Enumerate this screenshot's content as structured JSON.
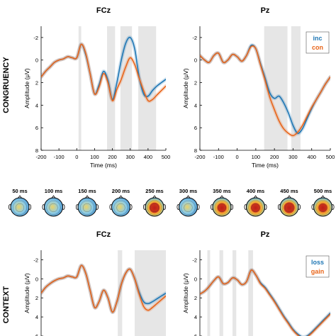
{
  "rows": [
    {
      "row_label": "CONGRUENCY",
      "panels": [
        {
          "title": "FCz",
          "xlabel": "Time (ms)",
          "ylabel": "Amplitude (μV)",
          "legend": null,
          "show_xaxis": true,
          "shaded": [
            [
              10,
              25
            ],
            [
              170,
              215
            ],
            [
              245,
              310
            ],
            [
              345,
              445
            ]
          ]
        },
        {
          "title": "Pz",
          "xlabel": "Time (ms)",
          "ylabel": "Amplitude (μV)",
          "legend": [
            "inc",
            "con"
          ],
          "show_xaxis": true,
          "shaded": [
            [
              145,
              270
            ],
            [
              290,
              340
            ]
          ]
        }
      ]
    },
    {
      "row_label": "CONTEXT",
      "panels": [
        {
          "title": "FCz",
          "xlabel": "",
          "ylabel": "Amplitude (μV)",
          "legend": null,
          "show_xaxis": false,
          "shaded": [
            [
              230,
              255
            ],
            [
              325,
              500
            ]
          ]
        },
        {
          "title": "Pz",
          "xlabel": "",
          "ylabel": "Amplitude (μV)",
          "legend": [
            "loss",
            "gain"
          ],
          "show_xaxis": false,
          "shaded": [
            [
              -160,
              -145
            ],
            [
              -95,
              -75
            ],
            [
              -25,
              -5
            ],
            [
              60,
              85
            ]
          ]
        }
      ]
    }
  ],
  "topomaps": {
    "labels": [
      "50 ms",
      "100 ms",
      "150 ms",
      "200 ms",
      "250 ms",
      "300 ms",
      "350 ms",
      "400 ms",
      "450 ms",
      "500 ms"
    ],
    "intensity": [
      0.05,
      0.15,
      0.25,
      0.2,
      0.85,
      0.45,
      0.65,
      0.7,
      0.95,
      0.6
    ]
  },
  "colors": {
    "series_a": "#1f77b4",
    "series_b": "#e8651a",
    "shade": "#e6e6e6"
  },
  "chart_data": [
    {
      "type": "line",
      "title": "FCz",
      "xlabel": "Time (ms)",
      "ylabel": "Amplitude (μV)",
      "xlim": [
        -200,
        500
      ],
      "ylim": [
        -3,
        8
      ],
      "y_inverted": true,
      "xticks": [
        -200,
        -100,
        0,
        100,
        200,
        300,
        400,
        500
      ],
      "yticks": [
        -2,
        0,
        2,
        4,
        6,
        8
      ],
      "x": [
        -200,
        -175,
        -150,
        -125,
        -100,
        -75,
        -50,
        -25,
        0,
        25,
        50,
        75,
        100,
        125,
        150,
        175,
        200,
        225,
        250,
        275,
        300,
        325,
        350,
        375,
        400,
        425,
        450,
        475,
        500
      ],
      "series": [
        {
          "name": "inc",
          "values": [
            1.5,
            1.0,
            0.6,
            0.2,
            0.0,
            -0.1,
            -0.3,
            -0.2,
            -0.2,
            -1.4,
            -0.5,
            1.2,
            3.0,
            2.2,
            1.0,
            1.8,
            3.5,
            2.0,
            0.0,
            -1.5,
            -2.0,
            -1.0,
            1.5,
            3.0,
            3.2,
            2.7,
            2.3,
            2.0,
            1.7
          ]
        },
        {
          "name": "con",
          "values": [
            1.5,
            1.0,
            0.6,
            0.2,
            0.0,
            -0.1,
            -0.3,
            -0.2,
            -0.2,
            -1.4,
            -0.6,
            1.2,
            3.0,
            2.4,
            1.2,
            2.0,
            3.6,
            2.6,
            1.7,
            0.6,
            -0.2,
            0.4,
            1.6,
            2.7,
            3.6,
            3.5,
            3.1,
            2.7,
            2.3
          ]
        }
      ]
    },
    {
      "type": "line",
      "title": "Pz",
      "xlabel": "Time (ms)",
      "ylabel": "Amplitude (μV)",
      "xlim": [
        -200,
        500
      ],
      "ylim": [
        -3,
        8
      ],
      "y_inverted": true,
      "xticks": [
        -200,
        -100,
        0,
        100,
        200,
        300,
        400,
        500
      ],
      "yticks": [
        -2,
        0,
        2,
        4,
        6,
        8
      ],
      "x": [
        -200,
        -175,
        -150,
        -125,
        -100,
        -75,
        -50,
        -25,
        0,
        25,
        50,
        75,
        100,
        125,
        150,
        175,
        200,
        225,
        250,
        275,
        300,
        325,
        350,
        375,
        400,
        425,
        450,
        475,
        500
      ],
      "series": [
        {
          "name": "inc",
          "values": [
            -0.4,
            0.0,
            0.2,
            -0.4,
            -0.6,
            0.2,
            0.0,
            -0.5,
            -0.3,
            0.1,
            -0.4,
            -1.3,
            -1.0,
            0.3,
            1.6,
            2.9,
            3.4,
            3.2,
            3.8,
            4.7,
            5.8,
            6.5,
            6.1,
            5.2,
            4.3,
            3.5,
            2.8,
            2.1,
            1.5
          ]
        },
        {
          "name": "con",
          "values": [
            -0.4,
            0.0,
            0.2,
            -0.4,
            -0.6,
            0.2,
            0.0,
            -0.5,
            -0.3,
            0.1,
            -0.4,
            -1.2,
            -1.0,
            0.4,
            1.8,
            3.3,
            4.4,
            5.4,
            6.1,
            6.5,
            6.7,
            6.4,
            5.8,
            5.0,
            4.2,
            3.5,
            2.8,
            2.1,
            1.5
          ]
        }
      ]
    },
    {
      "type": "line",
      "title": "FCz",
      "xlabel": "",
      "ylabel": "Amplitude (μV)",
      "xlim": [
        -200,
        500
      ],
      "ylim": [
        -3,
        6
      ],
      "y_inverted": true,
      "yticks": [
        -2,
        0,
        2,
        4,
        6
      ],
      "x": [
        -200,
        -175,
        -150,
        -125,
        -100,
        -75,
        -50,
        -25,
        0,
        25,
        50,
        75,
        100,
        125,
        150,
        175,
        200,
        225,
        250,
        275,
        300,
        325,
        350,
        375,
        400,
        425,
        450,
        475,
        500
      ],
      "series": [
        {
          "name": "loss",
          "values": [
            1.5,
            0.9,
            0.5,
            0.2,
            0.0,
            -0.1,
            -0.3,
            -0.2,
            -0.2,
            -1.4,
            -0.6,
            1.2,
            3.0,
            2.4,
            1.2,
            2.0,
            3.5,
            2.4,
            0.6,
            -0.6,
            -1.0,
            0.0,
            1.4,
            2.4,
            2.6,
            2.4,
            2.1,
            1.8,
            1.5
          ]
        },
        {
          "name": "gain",
          "values": [
            1.5,
            0.9,
            0.5,
            0.2,
            0.0,
            -0.1,
            -0.3,
            -0.2,
            -0.2,
            -1.4,
            -0.6,
            1.2,
            3.0,
            2.4,
            1.2,
            2.0,
            3.5,
            2.4,
            0.6,
            -0.6,
            -1.0,
            0.0,
            1.6,
            2.9,
            3.3,
            3.0,
            2.6,
            2.2,
            1.8
          ]
        }
      ]
    },
    {
      "type": "line",
      "title": "Pz",
      "xlabel": "",
      "ylabel": "Amplitude (μV)",
      "xlim": [
        -200,
        500
      ],
      "ylim": [
        -3,
        6
      ],
      "y_inverted": true,
      "yticks": [
        -2,
        0,
        2,
        4,
        6
      ],
      "x": [
        -200,
        -175,
        -150,
        -125,
        -100,
        -75,
        -50,
        -25,
        0,
        25,
        50,
        75,
        100,
        125,
        150,
        175,
        200,
        225,
        250,
        275,
        300,
        325,
        350,
        375,
        400,
        425,
        450,
        475,
        500
      ],
      "series": [
        {
          "name": "loss",
          "values": [
            1.6,
            1.3,
            0.8,
            0.2,
            -0.2,
            0.5,
            0.4,
            -0.1,
            0.1,
            0.6,
            0.3,
            -0.9,
            -0.4,
            0.4,
            0.9,
            1.6,
            2.3,
            3.1,
            3.9,
            4.6,
            5.3,
            5.8,
            6.1,
            6.0,
            5.6,
            5.1,
            4.6,
            4.1,
            3.6
          ]
        },
        {
          "name": "gain",
          "values": [
            1.6,
            1.3,
            0.8,
            0.2,
            -0.2,
            0.5,
            0.4,
            -0.1,
            0.1,
            0.6,
            0.3,
            -0.9,
            -0.4,
            0.5,
            1.0,
            1.7,
            2.4,
            3.2,
            4.0,
            4.7,
            5.4,
            5.9,
            6.2,
            6.1,
            5.7,
            5.2,
            4.7,
            4.2,
            3.7
          ]
        }
      ]
    }
  ]
}
